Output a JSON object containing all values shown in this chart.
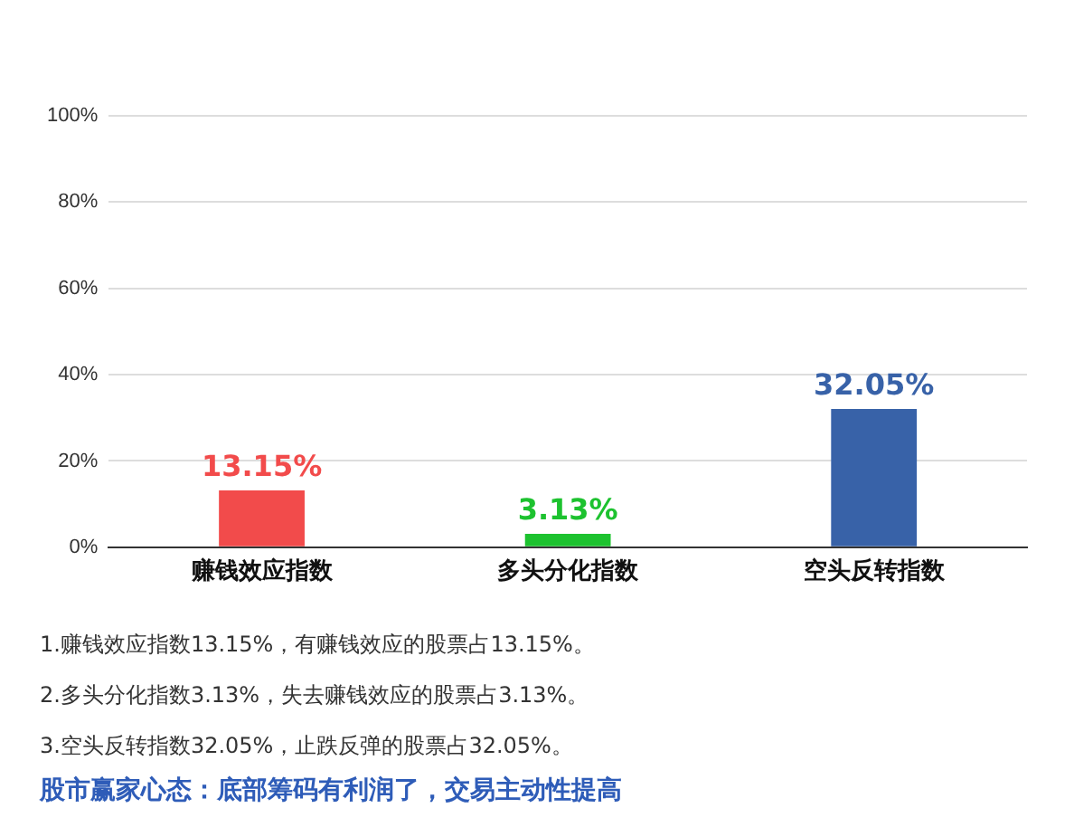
{
  "chart_data": {
    "type": "bar",
    "categories": [
      "赚钱效应指数",
      "多头分化指数",
      "空头反转指数"
    ],
    "values": [
      13.15,
      3.13,
      32.05
    ],
    "colors": [
      "#f24b4b",
      "#1dc22f",
      "#3862a8"
    ],
    "value_labels": [
      "13.15%",
      "3.13%",
      "32.05%"
    ],
    "ylim": [
      0,
      100
    ],
    "yticks": [
      {
        "value": 0,
        "label": "0%"
      },
      {
        "value": 20,
        "label": "20%"
      },
      {
        "value": 40,
        "label": "40%"
      },
      {
        "value": 60,
        "label": "60%"
      },
      {
        "value": 80,
        "label": "80%"
      },
      {
        "value": 100,
        "label": "100%"
      }
    ],
    "grid": "y",
    "annotations": [
      "1.赚钱效应指数13.15%，有赚钱效应的股票占13.15%。",
      "2.多头分化指数3.13%，失去赚钱效应的股票占3.13%。",
      "3.空头反转指数32.05%，止跌反弹的股票占32.05%。",
      "股市赢家心态：底部筹码有利润了，交易主动性提高"
    ]
  }
}
